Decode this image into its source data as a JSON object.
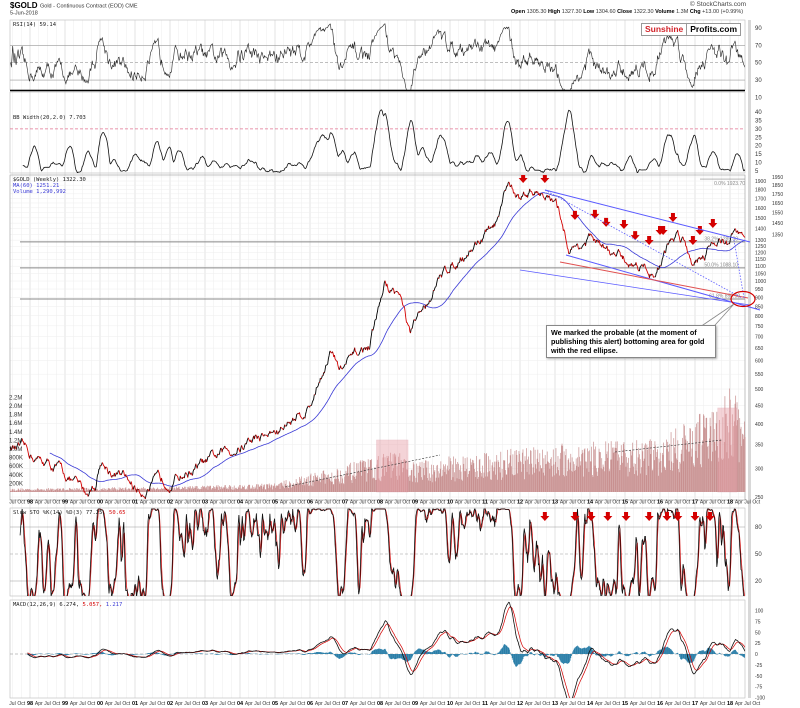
{
  "header": {
    "symbol": "$GOLD",
    "name": "Gold - Continuous Contract (EOD) CME",
    "date": "5-Jun-2018",
    "copyright": "© StockCharts.com",
    "ohlc": {
      "open_label": "Open",
      "open": "1305.30",
      "high_label": "High",
      "high": "1327.30",
      "low_label": "Low",
      "low": "1304.60",
      "close_label": "Close",
      "close": "1322.30",
      "volume_label": "Volume",
      "volume": "1.3M",
      "chg_label": "Chg",
      "chg": "+13.00 (+0.99%)"
    }
  },
  "logo": {
    "part1": "Sunshine",
    "part2": "Profits.com"
  },
  "callout": {
    "text": "We marked the probable (at the moment of publishing this alert) bottoming area for gold with the red ellipse."
  },
  "colors": {
    "price": "#000000",
    "down": "#d40000",
    "ma": "#3b3bd6",
    "channel": "#5a5aff",
    "ellipse": "#d40000",
    "volume": "#c89090",
    "volume_highlight": "#e8a0a8",
    "macd_hist": "#2a7ea8",
    "signal": "#d40000"
  },
  "chart_data": {
    "type": "line",
    "x_unit": "year",
    "time_axis": {
      "months": [
        "Apr",
        "Jul",
        "Oct"
      ],
      "first_months": [
        "Jul",
        "Oct"
      ],
      "years": [
        "98",
        "99",
        "00",
        "01",
        "02",
        "03",
        "04",
        "05",
        "06",
        "07",
        "08",
        "09",
        "10",
        "11",
        "12",
        "13",
        "14",
        "15",
        "16",
        "17",
        "18"
      ]
    },
    "panels": {
      "rsi": {
        "label": "RSI(14) 59.14",
        "ticks": [
          90,
          70,
          50,
          30,
          10
        ],
        "levels": [
          70,
          50,
          30
        ]
      },
      "bbwidth": {
        "label": "BB Width(20,2.0) 7.703",
        "ticks": [
          40,
          35,
          30,
          25,
          20,
          15,
          10,
          5
        ],
        "level": 30
      },
      "price": {
        "label": "$GOLD (Weekly) 1322.30",
        "ma_label": "MA(60) 1251.21",
        "volume_label": "Volume 1,290,992",
        "scale": "log",
        "ylim": [
          250,
          1950
        ],
        "ticks": [
          250,
          300,
          350,
          400,
          450,
          500,
          550,
          600,
          650,
          700,
          750,
          800,
          850,
          900,
          950,
          1000,
          1050,
          1100,
          1150,
          1200,
          1250,
          1300,
          1350,
          1400,
          1450,
          1500,
          1550,
          1600,
          1650,
          1700,
          1750,
          1800,
          1850,
          1900,
          1950
        ],
        "volume_ticks": [
          "200K",
          "400K",
          "600K",
          "800K",
          "1.0M",
          "1.2M",
          "1.4M",
          "1.6M",
          "1.8M",
          "2.0M",
          "2.2M"
        ],
        "close": {
          "x": [
            1997.43,
            1997.71,
            1998.86,
            1999.6,
            1999.86,
            2000.0,
            2001.14,
            2002.0,
            2003.14,
            2004.29,
            2005.14,
            2006.0,
            2006.57,
            2006.86,
            2007.71,
            2008.14,
            2008.57,
            2008.86,
            2009.43,
            2010.0,
            2010.86,
            2011.43,
            2011.66,
            2012.0,
            2012.29,
            2012.71,
            2013.14,
            2013.43,
            2014.0,
            2014.71,
            2015.43,
            2015.86,
            2016.29,
            2016.51,
            2016.71,
            2016.91,
            2017.43,
            2017.71,
            2017.94,
            2018.09,
            2018.43
          ],
          "y": [
            345,
            338,
            297,
            255,
            270,
            313,
            261,
            282,
            313,
            360,
            384,
            450,
            643,
            565,
            663,
            977,
            915,
            700,
            915,
            1110,
            1300,
            1481,
            1875,
            1685,
            1790,
            1780,
            1530,
            1220,
            1300,
            1160,
            1110,
            1060,
            1290,
            1360,
            1300,
            1150,
            1260,
            1340,
            1260,
            1350,
            1322.3
          ]
        },
        "volume": {
          "x": [
            1997.43,
            2002.0,
            2005.0,
            2007.9,
            2008.4,
            2009.0,
            2010.0,
            2013.0,
            2016.0,
            2017.7,
            2018.0,
            2018.43
          ],
          "y": [
            60000,
            90000,
            150000,
            600000,
            700000,
            500000,
            600000,
            800000,
            900000,
            1500000,
            1800000,
            1300000
          ]
        },
        "fibonacci": [
          {
            "label": "0.0% 1923.70",
            "value": 1923.7
          },
          {
            "label": "38.2% 1285.30",
            "value": 1285.3
          },
          {
            "label": "50.0% 1088.10",
            "value": 1088.1
          },
          {
            "label": "61.8% 890.90",
            "value": 890.9
          }
        ],
        "sell_arrows": {
          "x": [
            2012.09,
            2012.71,
            2013.57,
            2014.14,
            2014.46,
            2014.97,
            2015.29,
            2015.69,
            2016.0,
            2016.09,
            2016.37,
            2016.94,
            2017.14,
            2017.51
          ],
          "y": [
            1876,
            1876,
            1480,
            1490,
            1415,
            1396,
            1300,
            1260,
            1344,
            1344,
            1460,
            1260,
            1344,
            1405
          ]
        }
      },
      "stoch": {
        "label_prefix": "Slow STO %K(14) %D(3) 77.25,",
        "label_d": "50.65",
        "ticks": [
          80,
          50,
          20
        ],
        "sell_arrows": [
          2012.71,
          2013.57,
          2014.03,
          2014.51,
          2015.03,
          2015.69,
          2016.2,
          2016.51,
          2017.0,
          2017.43
        ]
      },
      "macd": {
        "label_prefix": "MACD(12,26,9) 6.274,",
        "label_signal": "5.057,",
        "label_hist": "1.217",
        "ticks": [
          100,
          75,
          50,
          25,
          0,
          -25,
          -50,
          -75,
          -100
        ]
      }
    }
  }
}
